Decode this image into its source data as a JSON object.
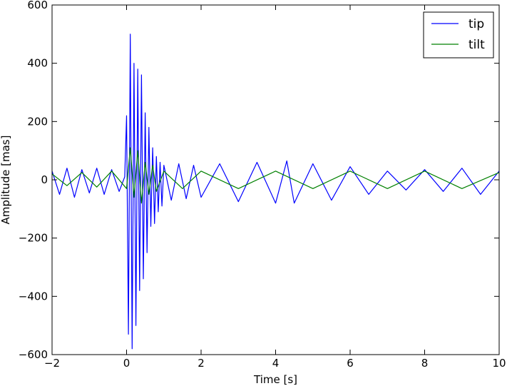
{
  "chart_data": {
    "type": "line",
    "title": "",
    "xlabel": "Time [s]",
    "ylabel": "Amplitude [mas]",
    "xlim": [
      -2,
      10
    ],
    "ylim": [
      -600,
      600
    ],
    "x_ticks": [
      -2,
      0,
      2,
      4,
      6,
      8,
      10
    ],
    "y_ticks": [
      -600,
      -400,
      -200,
      0,
      200,
      400,
      600
    ],
    "x_tick_labels": [
      "−2",
      "0",
      "2",
      "4",
      "6",
      "8",
      "10"
    ],
    "y_tick_labels": [
      "−600",
      "−400",
      "−200",
      "0",
      "200",
      "400",
      "600"
    ],
    "grid": false,
    "legend_position": "top-right",
    "series": [
      {
        "name": "tip",
        "color": "#0000ff",
        "x": [
          -2.0,
          -1.8,
          -1.6,
          -1.4,
          -1.2,
          -1.0,
          -0.8,
          -0.6,
          -0.4,
          -0.2,
          -0.05,
          0.0,
          0.05,
          0.1,
          0.15,
          0.2,
          0.25,
          0.3,
          0.35,
          0.4,
          0.45,
          0.5,
          0.55,
          0.6,
          0.65,
          0.7,
          0.75,
          0.8,
          0.85,
          0.9,
          0.95,
          1.0,
          1.2,
          1.4,
          1.6,
          1.8,
          2.0,
          2.5,
          3.0,
          3.5,
          4.0,
          4.3,
          4.5,
          5.0,
          5.5,
          6.0,
          6.5,
          7.0,
          7.5,
          8.0,
          8.5,
          9.0,
          9.5,
          10.0
        ],
        "y": [
          30,
          -50,
          40,
          -60,
          35,
          -45,
          40,
          -50,
          35,
          -40,
          10,
          220,
          -530,
          500,
          -580,
          400,
          -500,
          380,
          -380,
          360,
          -340,
          230,
          -250,
          180,
          -160,
          110,
          -150,
          80,
          -110,
          60,
          -90,
          50,
          -70,
          55,
          -65,
          50,
          -60,
          55,
          -75,
          60,
          -80,
          65,
          -80,
          55,
          -70,
          45,
          -50,
          30,
          -35,
          35,
          -40,
          40,
          -50,
          30
        ]
      },
      {
        "name": "tilt",
        "color": "#008000",
        "x": [
          -2.0,
          -1.6,
          -1.2,
          -0.8,
          -0.4,
          0.0,
          0.1,
          0.2,
          0.3,
          0.4,
          0.5,
          0.6,
          0.7,
          0.8,
          1.0,
          1.5,
          2.0,
          3.0,
          4.0,
          5.0,
          6.0,
          7.0,
          8.0,
          9.0,
          10.0
        ],
        "y": [
          20,
          -20,
          25,
          -25,
          30,
          -30,
          110,
          -60,
          100,
          -80,
          60,
          -50,
          50,
          -40,
          30,
          -30,
          30,
          -30,
          30,
          -30,
          30,
          -30,
          30,
          -30,
          25
        ]
      }
    ]
  }
}
